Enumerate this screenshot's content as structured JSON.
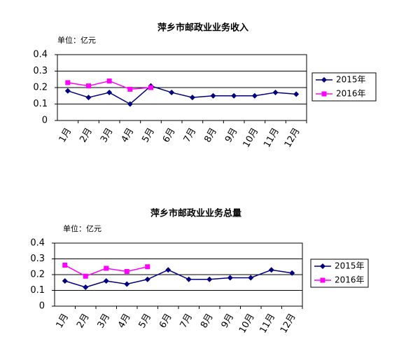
{
  "chart_data": [
    {
      "type": "line",
      "title": "萍乡市邮政业业务收入",
      "subtitle": "单位：亿元",
      "categories": [
        "1月",
        "2月",
        "3月",
        "4月",
        "5月",
        "6月",
        "7月",
        "8月",
        "9月",
        "10月",
        "11月",
        "12月"
      ],
      "series": [
        {
          "name": "2015年",
          "color": "#000080",
          "marker": "diamond",
          "values": [
            0.18,
            0.14,
            0.17,
            0.1,
            0.21,
            0.17,
            0.14,
            0.15,
            0.15,
            0.15,
            0.17,
            0.16
          ]
        },
        {
          "name": "2016年",
          "color": "#ff00ff",
          "marker": "square",
          "values": [
            0.23,
            0.21,
            0.24,
            0.19,
            0.2,
            null,
            null,
            null,
            null,
            null,
            null,
            null
          ]
        }
      ],
      "ylim": [
        0,
        0.4
      ],
      "yticks": [
        0,
        0.1,
        0.2,
        0.3,
        0.4
      ],
      "grid": true,
      "legend": "right"
    },
    {
      "type": "line",
      "title": "萍乡市邮政业业务总量",
      "subtitle": "单位：亿元",
      "categories": [
        "1月",
        "2月",
        "3月",
        "4月",
        "5月",
        "6月",
        "7月",
        "8月",
        "9月",
        "10月",
        "11月",
        "12月"
      ],
      "series": [
        {
          "name": "2015年",
          "color": "#000080",
          "marker": "diamond",
          "values": [
            0.16,
            0.12,
            0.16,
            0.14,
            0.17,
            0.23,
            0.17,
            0.17,
            0.18,
            0.18,
            0.23,
            0.21
          ]
        },
        {
          "name": "2016年",
          "color": "#ff00ff",
          "marker": "square",
          "values": [
            0.26,
            0.19,
            0.24,
            0.22,
            0.25,
            null,
            null,
            null,
            null,
            null,
            null,
            null
          ]
        }
      ],
      "ylim": [
        0,
        0.4
      ],
      "yticks": [
        0,
        0.1,
        0.2,
        0.3,
        0.4
      ],
      "grid": true,
      "legend": "right"
    }
  ]
}
